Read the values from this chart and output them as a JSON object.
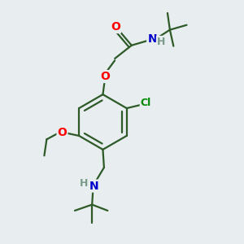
{
  "background_color": "#e8edf0",
  "bond_color": "#2d5a27",
  "atom_colors": {
    "O": "#ff0000",
    "N": "#0000cc",
    "Cl": "#008800",
    "H": "#7a9a8a",
    "C": "#2d5a27"
  },
  "line_width": 1.6,
  "figsize": [
    3.0,
    3.0
  ],
  "dpi": 100
}
